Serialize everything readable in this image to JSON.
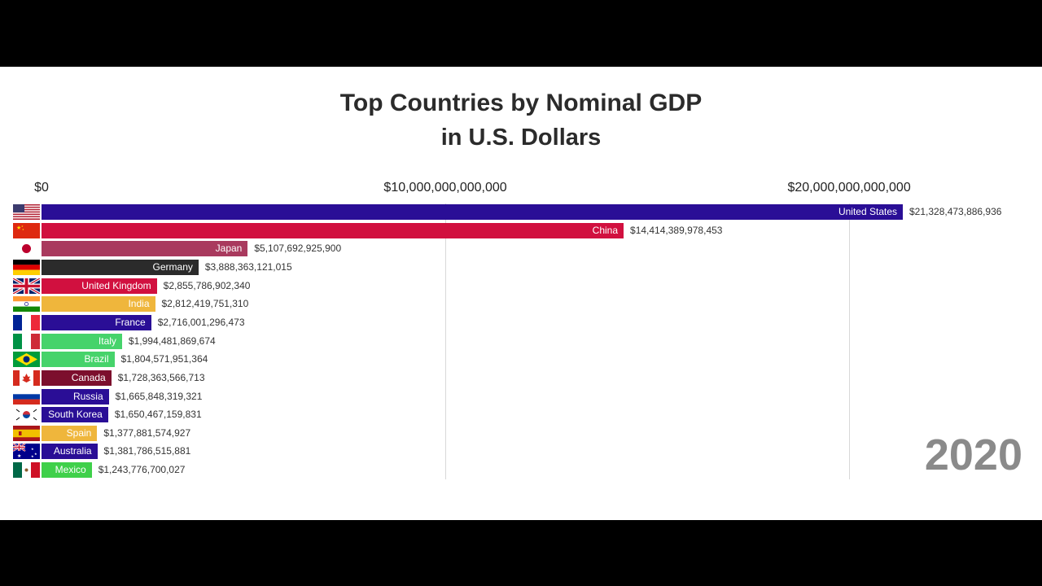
{
  "title": "Top Countries by Nominal GDP",
  "subtitle": "in U.S. Dollars",
  "year": "2020",
  "chart_data": {
    "type": "bar",
    "orientation": "horizontal",
    "title": "Top Countries by Nominal GDP",
    "subtitle": "in U.S. Dollars",
    "xlim": [
      0,
      21328473886936
    ],
    "x_ticks": [
      {
        "value": 0,
        "label": "$0"
      },
      {
        "value": 10000000000000,
        "label": "$10,000,000,000,000"
      },
      {
        "value": 20000000000000,
        "label": "$20,000,000,000,000"
      }
    ],
    "grid": true,
    "categories": [
      "United States",
      "China",
      "Japan",
      "Germany",
      "United Kingdom",
      "India",
      "France",
      "Italy",
      "Brazil",
      "Canada",
      "Russia",
      "South Korea",
      "Spain",
      "Australia",
      "Mexico"
    ],
    "values": [
      21328473886936,
      14414389978453,
      5107692925900,
      3888363121015,
      2855786902340,
      2812419751310,
      2716001296473,
      1994481869674,
      1804571951364,
      1728363566713,
      1665848319321,
      1650467159831,
      1377881574927,
      1381786515881,
      1243776700027
    ],
    "value_labels": [
      "$21,328,473,886,936",
      "$14,414,389,978,453",
      "$5,107,692,925,900",
      "$3,888,363,121,015",
      "$2,855,786,902,340",
      "$2,812,419,751,310",
      "$2,716,001,296,473",
      "$1,994,481,869,674",
      "$1,804,571,951,364",
      "$1,728,363,566,713",
      "$1,665,848,319,321",
      "$1,650,467,159,831",
      "$1,377,881,574,927",
      "$1,381,786,515,881",
      "$1,243,776,700,027"
    ],
    "colors": [
      "#2a0e96",
      "#d1103f",
      "#a93a5e",
      "#2b2b2b",
      "#d1103f",
      "#efb63c",
      "#2a0e96",
      "#46d36b",
      "#46d36b",
      "#7c0f2d",
      "#2a0e96",
      "#2a0e96",
      "#efb63c",
      "#2a0e96",
      "#3fd04a"
    ],
    "flags": [
      "us-flag",
      "china-flag",
      "japan-flag",
      "germany-flag",
      "uk-flag",
      "india-flag",
      "france-flag",
      "italy-flag",
      "brazil-flag",
      "canada-flag",
      "russia-flag",
      "south-korea-flag",
      "spain-flag",
      "australia-flag",
      "mexico-flag"
    ]
  }
}
